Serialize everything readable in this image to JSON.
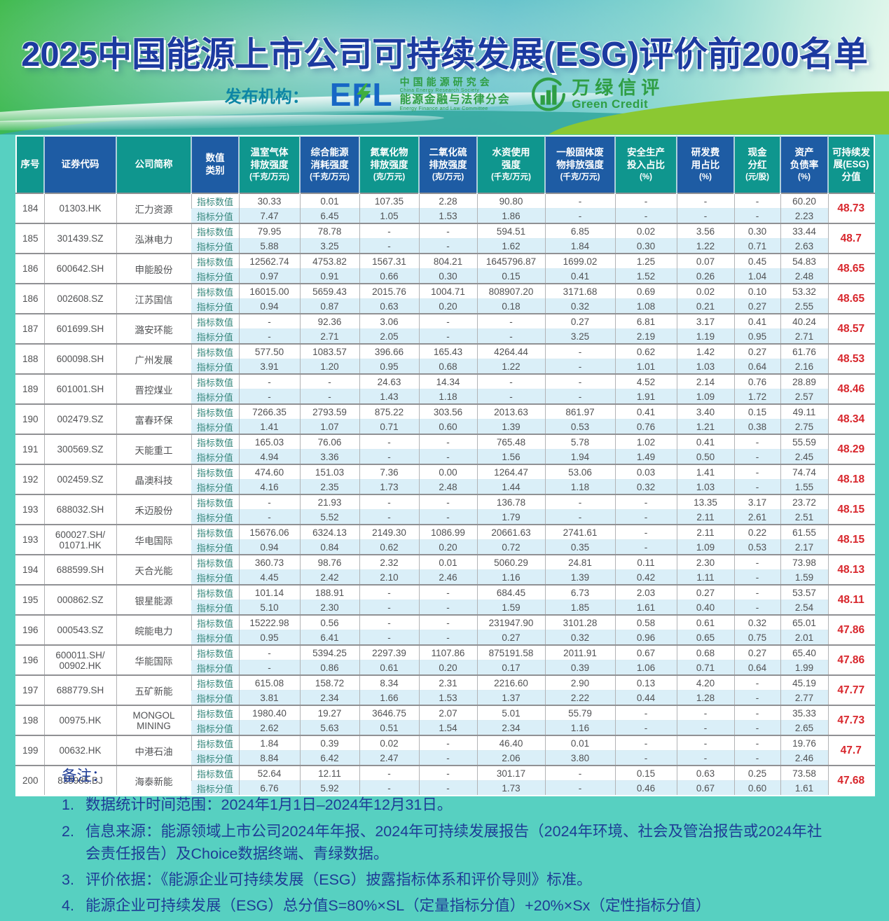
{
  "header": {
    "title": "2025中国能源上市公司可持续发展(ESG)评价前200名单",
    "publisher_label": "发布机构：",
    "efl": {
      "mark": "EFL",
      "org_cn_1": "中国能源研究会",
      "org_en_1": "China Energy Research Society",
      "org_cn_2": "能源金融与法律分会",
      "org_en_2": "Energy Finance and Law Committee"
    },
    "green_credit": {
      "name_cn": "万绿信评",
      "name_en": "Green Credit"
    }
  },
  "table": {
    "value_type_labels": [
      "指标数值",
      "指标分值"
    ],
    "columns": [
      {
        "label": "序号",
        "unit": "",
        "color": "teal"
      },
      {
        "label": "证券代码",
        "unit": "",
        "color": "blue"
      },
      {
        "label": "公司简称",
        "unit": "",
        "color": "teal"
      },
      {
        "label": "数值\n类别",
        "unit": "",
        "color": "blue"
      },
      {
        "label": "温室气体\n排放强度",
        "unit": "(千克/万元)",
        "color": "teal"
      },
      {
        "label": "综合能源\n消耗强度",
        "unit": "(千克/万元)",
        "color": "blue"
      },
      {
        "label": "氮氧化物\n排放强度",
        "unit": "(克/万元)",
        "color": "teal"
      },
      {
        "label": "二氧化硫\n排放强度",
        "unit": "(克/万元)",
        "color": "blue"
      },
      {
        "label": "水资使用\n强度",
        "unit": "(千克/万元)",
        "color": "teal"
      },
      {
        "label": "一般固体废\n物排放强度",
        "unit": "(千克/万元)",
        "color": "blue"
      },
      {
        "label": "安全生产\n投入占比",
        "unit": "(%)",
        "color": "teal"
      },
      {
        "label": "研发费\n用占比",
        "unit": "(%)",
        "color": "blue"
      },
      {
        "label": "现金\n分红",
        "unit": "(元/股)",
        "color": "teal"
      },
      {
        "label": "资产\n负债率",
        "unit": "(%)",
        "color": "blue"
      },
      {
        "label": "可持续发\n展(ESG)\n分值",
        "unit": "",
        "color": "teal"
      }
    ],
    "rows": [
      {
        "rank": "184",
        "code": "01303.HK",
        "name": "汇力资源",
        "values": [
          "30.33",
          "0.01",
          "107.35",
          "2.28",
          "90.80",
          "-",
          "-",
          "-",
          "-",
          "60.20"
        ],
        "scores": [
          "7.47",
          "6.45",
          "1.05",
          "1.53",
          "1.86",
          "-",
          "-",
          "-",
          "-",
          "2.23"
        ],
        "esg": "48.73"
      },
      {
        "rank": "185",
        "code": "301439.SZ",
        "name": "泓淋电力",
        "values": [
          "79.95",
          "78.78",
          "-",
          "-",
          "594.51",
          "6.85",
          "0.02",
          "3.56",
          "0.30",
          "33.44"
        ],
        "scores": [
          "5.88",
          "3.25",
          "-",
          "-",
          "1.62",
          "1.84",
          "0.30",
          "1.22",
          "0.71",
          "2.63"
        ],
        "esg": "48.7"
      },
      {
        "rank": "186",
        "code": "600642.SH",
        "name": "申能股份",
        "values": [
          "12562.74",
          "4753.82",
          "1567.31",
          "804.21",
          "1645796.87",
          "1699.02",
          "1.25",
          "0.07",
          "0.45",
          "54.83"
        ],
        "scores": [
          "0.97",
          "0.91",
          "0.66",
          "0.30",
          "0.15",
          "0.41",
          "1.52",
          "0.26",
          "1.04",
          "2.48"
        ],
        "esg": "48.65"
      },
      {
        "rank": "186",
        "code": "002608.SZ",
        "name": "江苏国信",
        "values": [
          "16015.00",
          "5659.43",
          "2015.76",
          "1004.71",
          "808907.20",
          "3171.68",
          "0.69",
          "0.02",
          "0.10",
          "53.32"
        ],
        "scores": [
          "0.94",
          "0.87",
          "0.63",
          "0.20",
          "0.18",
          "0.32",
          "1.08",
          "0.21",
          "0.27",
          "2.55"
        ],
        "esg": "48.65"
      },
      {
        "rank": "187",
        "code": "601699.SH",
        "name": "潞安环能",
        "values": [
          "-",
          "92.36",
          "3.06",
          "-",
          "-",
          "0.27",
          "6.81",
          "3.17",
          "0.41",
          "40.24"
        ],
        "scores": [
          "-",
          "2.71",
          "2.05",
          "-",
          "-",
          "3.25",
          "2.19",
          "1.19",
          "0.95",
          "2.71"
        ],
        "esg": "48.57"
      },
      {
        "rank": "188",
        "code": "600098.SH",
        "name": "广州发展",
        "values": [
          "577.50",
          "1083.57",
          "396.66",
          "165.43",
          "4264.44",
          "-",
          "0.62",
          "1.42",
          "0.27",
          "61.76"
        ],
        "scores": [
          "3.91",
          "1.20",
          "0.95",
          "0.68",
          "1.22",
          "-",
          "1.01",
          "1.03",
          "0.64",
          "2.16"
        ],
        "esg": "48.53"
      },
      {
        "rank": "189",
        "code": "601001.SH",
        "name": "晋控煤业",
        "values": [
          "-",
          "-",
          "24.63",
          "14.34",
          "-",
          "-",
          "4.52",
          "2.14",
          "0.76",
          "28.89"
        ],
        "scores": [
          "-",
          "-",
          "1.43",
          "1.18",
          "-",
          "-",
          "1.91",
          "1.09",
          "1.72",
          "2.57"
        ],
        "esg": "48.46"
      },
      {
        "rank": "190",
        "code": "002479.SZ",
        "name": "富春环保",
        "values": [
          "7266.35",
          "2793.59",
          "875.22",
          "303.56",
          "2013.63",
          "861.97",
          "0.41",
          "3.40",
          "0.15",
          "49.11"
        ],
        "scores": [
          "1.41",
          "1.07",
          "0.71",
          "0.60",
          "1.39",
          "0.53",
          "0.76",
          "1.21",
          "0.38",
          "2.75"
        ],
        "esg": "48.34"
      },
      {
        "rank": "191",
        "code": "300569.SZ",
        "name": "天能重工",
        "values": [
          "165.03",
          "76.06",
          "-",
          "-",
          "765.48",
          "5.78",
          "1.02",
          "0.41",
          "-",
          "55.59"
        ],
        "scores": [
          "4.94",
          "3.36",
          "-",
          "-",
          "1.56",
          "1.94",
          "1.49",
          "0.50",
          "-",
          "2.45"
        ],
        "esg": "48.29"
      },
      {
        "rank": "192",
        "code": "002459.SZ",
        "name": "晶澳科技",
        "values": [
          "474.60",
          "151.03",
          "7.36",
          "0.00",
          "1264.47",
          "53.06",
          "0.03",
          "1.41",
          "-",
          "74.74"
        ],
        "scores": [
          "4.16",
          "2.35",
          "1.73",
          "2.48",
          "1.44",
          "1.18",
          "0.32",
          "1.03",
          "-",
          "1.55"
        ],
        "esg": "48.18"
      },
      {
        "rank": "193",
        "code": "688032.SH",
        "name": "禾迈股份",
        "values": [
          "-",
          "21.93",
          "-",
          "-",
          "136.78",
          "-",
          "-",
          "13.35",
          "3.17",
          "23.72"
        ],
        "scores": [
          "-",
          "5.52",
          "-",
          "-",
          "1.79",
          "-",
          "-",
          "2.11",
          "2.61",
          "2.51"
        ],
        "esg": "48.15"
      },
      {
        "rank": "193",
        "code": "600027.SH/\n01071.HK",
        "name": "华电国际",
        "values": [
          "15676.06",
          "6324.13",
          "2149.30",
          "1086.99",
          "20661.63",
          "2741.61",
          "-",
          "2.11",
          "0.22",
          "61.55"
        ],
        "scores": [
          "0.94",
          "0.84",
          "0.62",
          "0.20",
          "0.72",
          "0.35",
          "-",
          "1.09",
          "0.53",
          "2.17"
        ],
        "esg": "48.15"
      },
      {
        "rank": "194",
        "code": "688599.SH",
        "name": "天合光能",
        "values": [
          "360.73",
          "98.76",
          "2.32",
          "0.01",
          "5060.29",
          "24.81",
          "0.11",
          "2.30",
          "-",
          "73.98"
        ],
        "scores": [
          "4.45",
          "2.42",
          "2.10",
          "2.46",
          "1.16",
          "1.39",
          "0.42",
          "1.11",
          "-",
          "1.59"
        ],
        "esg": "48.13"
      },
      {
        "rank": "195",
        "code": "000862.SZ",
        "name": "银星能源",
        "values": [
          "101.14",
          "188.91",
          "-",
          "-",
          "684.45",
          "6.73",
          "2.03",
          "0.27",
          "-",
          "53.57"
        ],
        "scores": [
          "5.10",
          "2.30",
          "-",
          "-",
          "1.59",
          "1.85",
          "1.61",
          "0.40",
          "-",
          "2.54"
        ],
        "esg": "48.11"
      },
      {
        "rank": "196",
        "code": "000543.SZ",
        "name": "皖能电力",
        "values": [
          "15222.98",
          "0.56",
          "-",
          "-",
          "231947.90",
          "3101.28",
          "0.58",
          "0.61",
          "0.32",
          "65.01"
        ],
        "scores": [
          "0.95",
          "6.41",
          "-",
          "-",
          "0.27",
          "0.32",
          "0.96",
          "0.65",
          "0.75",
          "2.01"
        ],
        "esg": "47.86"
      },
      {
        "rank": "196",
        "code": "600011.SH/\n00902.HK",
        "name": "华能国际",
        "values": [
          "-",
          "5394.25",
          "2297.39",
          "1107.86",
          "875191.58",
          "2011.91",
          "0.67",
          "0.68",
          "0.27",
          "65.40"
        ],
        "scores": [
          "-",
          "0.86",
          "0.61",
          "0.20",
          "0.17",
          "0.39",
          "1.06",
          "0.71",
          "0.64",
          "1.99"
        ],
        "esg": "47.86"
      },
      {
        "rank": "197",
        "code": "688779.SH",
        "name": "五矿新能",
        "values": [
          "615.08",
          "158.72",
          "8.34",
          "2.31",
          "2216.60",
          "2.90",
          "0.13",
          "4.20",
          "-",
          "45.19"
        ],
        "scores": [
          "3.81",
          "2.34",
          "1.66",
          "1.53",
          "1.37",
          "2.22",
          "0.44",
          "1.28",
          "-",
          "2.77"
        ],
        "esg": "47.77"
      },
      {
        "rank": "198",
        "code": "00975.HK",
        "name": "MONGOL\nMINING",
        "values": [
          "1980.40",
          "19.27",
          "3646.75",
          "2.07",
          "5.01",
          "55.79",
          "-",
          "-",
          "-",
          "35.33"
        ],
        "scores": [
          "2.62",
          "5.63",
          "0.51",
          "1.54",
          "2.34",
          "1.16",
          "-",
          "-",
          "-",
          "2.65"
        ],
        "esg": "47.73"
      },
      {
        "rank": "199",
        "code": "00632.HK",
        "name": "中港石油",
        "values": [
          "1.84",
          "0.39",
          "0.02",
          "-",
          "46.40",
          "0.01",
          "-",
          "-",
          "-",
          "19.76"
        ],
        "scores": [
          "8.84",
          "6.42",
          "2.47",
          "-",
          "2.06",
          "3.80",
          "-",
          "-",
          "-",
          "2.46"
        ],
        "esg": "47.7"
      },
      {
        "rank": "200",
        "code": "835985.BJ",
        "name": "海泰新能",
        "values": [
          "52.64",
          "12.11",
          "-",
          "-",
          "301.17",
          "-",
          "0.15",
          "0.63",
          "0.25",
          "73.58"
        ],
        "scores": [
          "6.76",
          "5.92",
          "-",
          "-",
          "1.73",
          "-",
          "0.46",
          "0.67",
          "0.60",
          "1.61"
        ],
        "esg": "47.68"
      }
    ]
  },
  "notes": {
    "title": "备注：",
    "items": [
      {
        "num": "1.",
        "text": "数据统计时间范围：2024年1月1日–2024年12月31日。"
      },
      {
        "num": "2.",
        "text": "信息来源：能源领域上市公司2024年年报、2024年可持续发展报告（2024年环境、社会及管治报告或2024年社会责任报告）及Choice数据终端、青绿数据。"
      },
      {
        "num": "3.",
        "text": "评价依据：《能源企业可持续发展（ESG）披露指标体系和评价导则》标准。"
      },
      {
        "num": "4.",
        "text": "能源企业可持续发展（ESG）总分值S=80%×SL（定量指标分值）+20%×Sx（定性指标分值）"
      }
    ]
  },
  "colors": {
    "page_turquoise": "#57d0c1",
    "header_teal": "#0f968e",
    "header_blue": "#1e5ca4",
    "row_stripe": "#daeff8",
    "esg_red": "#d8262c",
    "title_blue": "#1c3aa0",
    "note_blue": "#1e3c96",
    "logo_green": "#2f9e44",
    "efl_blue": "#1767c5"
  }
}
